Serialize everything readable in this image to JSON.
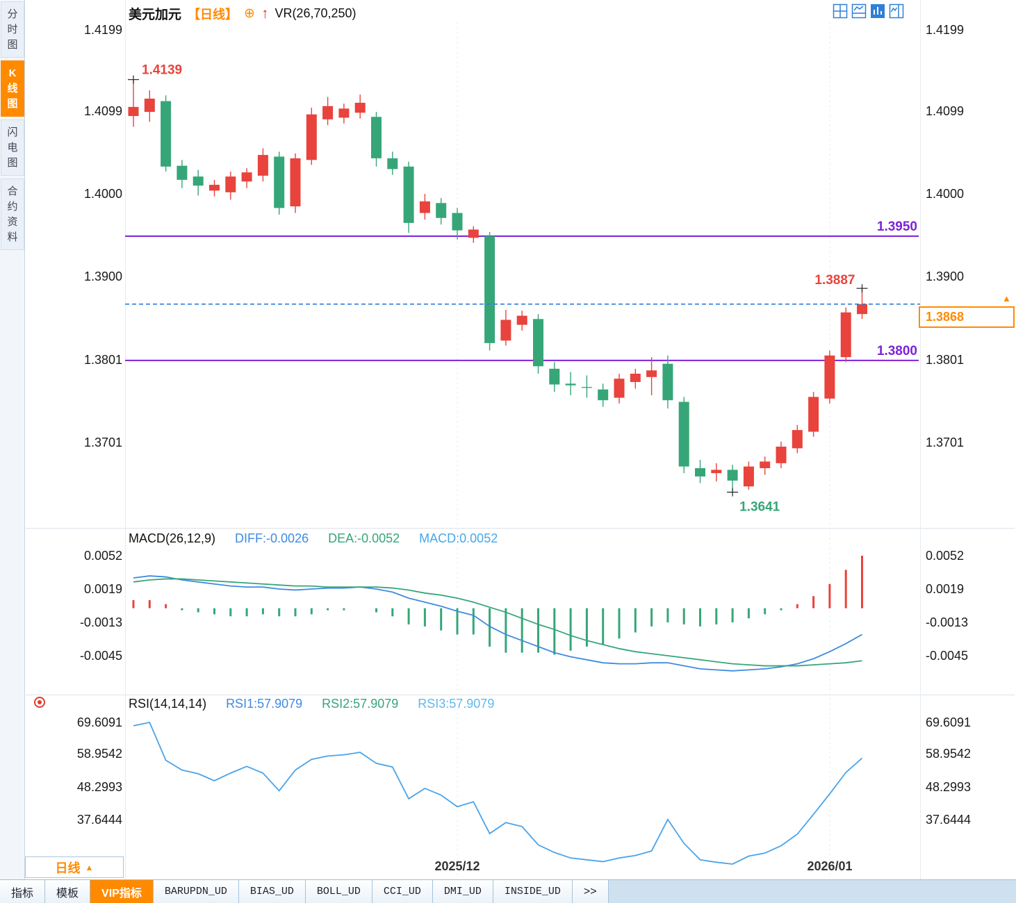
{
  "header": {
    "symbol": "美元加元",
    "period_tag": "【日线】",
    "plus_icon": "⊕",
    "arrow_icon": "↑",
    "overlay_label": "VR(26,70,250)",
    "layout_icons": [
      "pane-grid-icon",
      "pane-main-sub-icon",
      "pane-active-icon",
      "pane-side-panel-icon"
    ]
  },
  "sidebar": {
    "items": [
      {
        "name": "time-chart",
        "label": "分时图",
        "active": false
      },
      {
        "name": "kline-chart",
        "label": "K线图",
        "active": true
      },
      {
        "name": "flash-chart",
        "label": "闪电图",
        "active": false
      },
      {
        "name": "contract-info",
        "label": "合约资料",
        "active": false
      }
    ]
  },
  "footer": {
    "period_selector": {
      "label": "日线",
      "arrow": "▲"
    },
    "tabs": [
      {
        "name": "indicators",
        "label": "指标",
        "active": false,
        "mono": false
      },
      {
        "name": "templates",
        "label": "模板",
        "active": false,
        "mono": false
      },
      {
        "name": "vip-indicators",
        "label": "VIP指标",
        "active": true,
        "mono": false
      },
      {
        "name": "barupdn-ud",
        "label": "BARUPDN_UD",
        "active": false,
        "mono": true
      },
      {
        "name": "bias-ud",
        "label": "BIAS_UD",
        "active": false,
        "mono": true
      },
      {
        "name": "boll-ud",
        "label": "BOLL_UD",
        "active": false,
        "mono": true
      },
      {
        "name": "cci-ud",
        "label": "CCI_UD",
        "active": false,
        "mono": true
      },
      {
        "name": "dmi-ud",
        "label": "DMI_UD",
        "active": false,
        "mono": true
      },
      {
        "name": "inside-ud",
        "label": "INSIDE_UD",
        "active": false,
        "mono": true
      },
      {
        "name": "more",
        "label": ">>",
        "active": false,
        "mono": false
      }
    ]
  },
  "colors": {
    "accent_orange": "#ff8a00",
    "up_red": "#e8433c",
    "down_green": "#36a678",
    "support_purple": "#7d22d8",
    "price_line_blue": "#2f7fd6",
    "diff_line": "#3f8be0",
    "dea_line": "#36a678",
    "rsi_line": "#4aa3e8"
  },
  "chart_data": {
    "panels": [
      {
        "type": "candlestick",
        "title": "美元加元 日线",
        "y_axis_labels": [
          "1.4199",
          "1.4099",
          "1.4000",
          "1.3900",
          "1.3801",
          "1.3701"
        ],
        "up_color": "#e8433c",
        "down_color": "#36a678",
        "candles": [
          [
            1.4095,
            1.4139,
            1.4082,
            1.4106
          ],
          [
            1.41,
            1.4126,
            1.4088,
            1.4116
          ],
          [
            1.4113,
            1.412,
            1.4028,
            1.4034
          ],
          [
            1.4035,
            1.4042,
            1.4008,
            1.4018
          ],
          [
            1.4022,
            1.403,
            1.3999,
            1.4011
          ],
          [
            1.4005,
            1.4018,
            1.3998,
            1.4012
          ],
          [
            1.4003,
            1.4028,
            1.3994,
            1.4022
          ],
          [
            1.4016,
            1.4032,
            1.4008,
            1.4027
          ],
          [
            1.4023,
            1.4056,
            1.4016,
            1.4048
          ],
          [
            1.4046,
            1.4052,
            1.3976,
            1.3984
          ],
          [
            1.3986,
            1.405,
            1.3978,
            1.4044
          ],
          [
            1.4042,
            1.4105,
            1.4036,
            1.4097
          ],
          [
            1.4091,
            1.4118,
            1.4084,
            1.4107
          ],
          [
            1.4093,
            1.411,
            1.4086,
            1.4104
          ],
          [
            1.4099,
            1.4121,
            1.4092,
            1.4111
          ],
          [
            1.4094,
            1.41,
            1.4034,
            1.4044
          ],
          [
            1.4044,
            1.4052,
            1.4024,
            1.4031
          ],
          [
            1.4034,
            1.404,
            1.3954,
            1.3966
          ],
          [
            1.3978,
            1.4001,
            1.397,
            1.3992
          ],
          [
            1.399,
            1.3996,
            1.3964,
            1.3972
          ],
          [
            1.3978,
            1.3984,
            1.3946,
            1.3957
          ],
          [
            1.3948,
            1.3962,
            1.3942,
            1.3958
          ],
          [
            1.395,
            1.3955,
            1.3812,
            1.3821
          ],
          [
            1.3824,
            1.3861,
            1.3818,
            1.3849
          ],
          [
            1.3843,
            1.386,
            1.3836,
            1.3854
          ],
          [
            1.385,
            1.3856,
            1.3784,
            1.3793
          ],
          [
            1.379,
            1.3798,
            1.3762,
            1.3771
          ],
          [
            1.3772,
            1.3786,
            1.3758,
            1.377
          ],
          [
            1.3768,
            1.3782,
            1.3755,
            1.3767
          ],
          [
            1.3765,
            1.3772,
            1.3744,
            1.3752
          ],
          [
            1.3755,
            1.3784,
            1.3748,
            1.3778
          ],
          [
            1.3774,
            1.379,
            1.3766,
            1.3784
          ],
          [
            1.378,
            1.3804,
            1.3758,
            1.3788
          ],
          [
            1.3796,
            1.3806,
            1.3742,
            1.3752
          ],
          [
            1.375,
            1.3756,
            1.3664,
            1.3672
          ],
          [
            1.367,
            1.368,
            1.3652,
            1.366
          ],
          [
            1.3664,
            1.3676,
            1.3654,
            1.3668
          ],
          [
            1.3668,
            1.3674,
            1.3641,
            1.3655
          ],
          [
            1.3648,
            1.3678,
            1.3644,
            1.3672
          ],
          [
            1.367,
            1.3684,
            1.3662,
            1.3678
          ],
          [
            1.3676,
            1.3702,
            1.367,
            1.3696
          ],
          [
            1.3694,
            1.3722,
            1.3688,
            1.3716
          ],
          [
            1.3714,
            1.3762,
            1.3708,
            1.3756
          ],
          [
            1.3754,
            1.3812,
            1.3748,
            1.3806
          ],
          [
            1.3804,
            1.3864,
            1.3798,
            1.3858
          ],
          [
            1.3856,
            1.3887,
            1.385,
            1.3868
          ]
        ],
        "hlines": [
          {
            "value": 1.395,
            "label": "1.3950",
            "color": "#7d22d8"
          },
          {
            "value": 1.38,
            "label": "1.3800",
            "color": "#7d22d8"
          }
        ],
        "current_price": {
          "value": 1.3868,
          "label": "1.3868",
          "color": "#ff8a00",
          "line_color": "#2f7fd6"
        },
        "annotations": [
          {
            "candle_index": 0,
            "type": "high",
            "label": "1.4139",
            "placement": "right-above"
          },
          {
            "candle_index": 37,
            "type": "low",
            "label": "1.3641",
            "placement": "right-below"
          },
          {
            "candle_index": 45,
            "type": "high",
            "label": "1.3887",
            "placement": "left-above"
          }
        ]
      },
      {
        "type": "macd",
        "title": "MACD(26,12,9)",
        "legend": [
          {
            "label": "DIFF:-0.0026",
            "color": "#3f8be0"
          },
          {
            "label": "DEA:-0.0052",
            "color": "#36a678"
          },
          {
            "label": "MACD:0.0052",
            "color": "#45a7e8"
          }
        ],
        "y_axis_labels": [
          "0.0052",
          "0.0019",
          "-0.0013",
          "-0.0045"
        ],
        "diff": [
          0.003,
          0.0032,
          0.0031,
          0.0028,
          0.0026,
          0.0024,
          0.0022,
          0.0021,
          0.0021,
          0.0019,
          0.0018,
          0.0019,
          0.002,
          0.002,
          0.0021,
          0.0019,
          0.0016,
          0.001,
          0.0006,
          0.0002,
          -0.0003,
          -0.0007,
          -0.0018,
          -0.0026,
          -0.0032,
          -0.0038,
          -0.0044,
          -0.0048,
          -0.0051,
          -0.0054,
          -0.0055,
          -0.0055,
          -0.0054,
          -0.0054,
          -0.0057,
          -0.006,
          -0.0061,
          -0.0062,
          -0.0061,
          -0.006,
          -0.0058,
          -0.0055,
          -0.005,
          -0.0043,
          -0.0035,
          -0.0026
        ],
        "dea": [
          0.0026,
          0.0028,
          0.0029,
          0.0029,
          0.0028,
          0.0027,
          0.0026,
          0.0025,
          0.0024,
          0.0023,
          0.0022,
          0.0022,
          0.0021,
          0.0021,
          0.0021,
          0.0021,
          0.002,
          0.0018,
          0.0015,
          0.0013,
          0.001,
          0.0006,
          0.0001,
          -0.0004,
          -0.001,
          -0.0016,
          -0.0021,
          -0.0027,
          -0.0032,
          -0.0036,
          -0.004,
          -0.0043,
          -0.0045,
          -0.0047,
          -0.0049,
          -0.0051,
          -0.0053,
          -0.0055,
          -0.0056,
          -0.0057,
          -0.0057,
          -0.0057,
          -0.0056,
          -0.0055,
          -0.0054,
          -0.0052
        ]
      },
      {
        "type": "rsi",
        "title": "RSI(14,14,14)",
        "legend": [
          {
            "label": "RSI1:57.9079",
            "color": "#3f8be0"
          },
          {
            "label": "RSI2:57.9079",
            "color": "#36a678"
          },
          {
            "label": "RSI3:57.9079",
            "color": "#5fb8ef"
          }
        ],
        "y_axis_labels": [
          "69.6091",
          "58.9542",
          "48.2993",
          "37.6444"
        ],
        "rsi": [
          68.5,
          69.6,
          57.2,
          54.0,
          52.8,
          50.5,
          53.0,
          55.2,
          53.0,
          47.2,
          54.0,
          57.5,
          58.6,
          59.0,
          59.8,
          56.2,
          55.0,
          44.6,
          48.0,
          45.8,
          42.0,
          43.6,
          33.2,
          36.8,
          35.5,
          29.5,
          27.0,
          25.2,
          24.6,
          24.0,
          25.2,
          26.0,
          27.5,
          37.8,
          30.0,
          24.6,
          23.8,
          23.2,
          25.8,
          26.8,
          29.2,
          33.0,
          39.5,
          46.2,
          53.2,
          57.9
        ]
      }
    ],
    "x_axis": {
      "labels": [
        {
          "text": "2025/12",
          "candle_index": 20
        },
        {
          "text": "2026/01",
          "candle_index": 43
        }
      ]
    }
  }
}
